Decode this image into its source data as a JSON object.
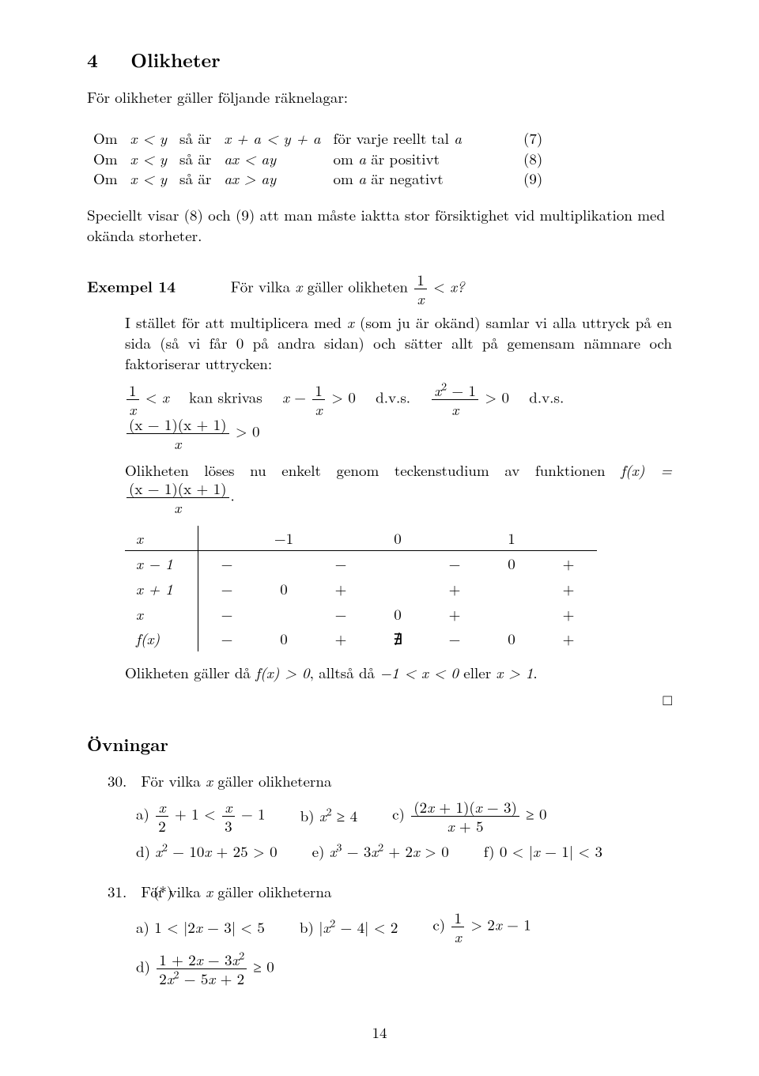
{
  "section": {
    "number": "4",
    "title": "Olikheter"
  },
  "intro": "För olikheter gäller följande räknelagar:",
  "rules": [
    {
      "cond_pre": "Om",
      "cond": "x < y",
      "sa": "så är",
      "res": "x + a < y + a",
      "tail": "för varje reellt tal a",
      "num": "(7)"
    },
    {
      "cond_pre": "Om",
      "cond": "x < y",
      "sa": "så är",
      "res": "ax < ay",
      "tail": "om a är positivt",
      "num": "(8)"
    },
    {
      "cond_pre": "Om",
      "cond": "x < y",
      "sa": "så är",
      "res": "ax > ay",
      "tail": "om a är negativt",
      "num": "(9)"
    }
  ],
  "after_rules": "Speciellt visar (8) och (9) att man måste iaktta stor försiktighet vid multiplikation med okända storheter.",
  "example": {
    "label": "Exempel 14",
    "head_text_a": "För vilka ",
    "head_text_b": " gäller olikheten ",
    "head_ineq_lhs_num": "1",
    "head_ineq_lhs_den": "x",
    "head_ineq_rel": "<",
    "head_ineq_rhs": "x?",
    "p1_a": "I stället för att multiplicera med ",
    "p1_b": " (som ju är okänd) samlar vi alla uttryck på en sida (så vi får 0 på andra sidan) och sätter allt på gemensam nämnare och faktoriserar uttrycken:",
    "line_parts": {
      "fr1_num": "1",
      "fr1_den": "x",
      "rel1": "<",
      "rhs1": "x",
      "t1": "kan skrivas",
      "lhs2_a": "x",
      "minus": "−",
      "fr2_num": "1",
      "fr2_den": "x",
      "gt": "> 0",
      "t2": "d.v.s.",
      "fr3_num": "x",
      "fr3_num_sup": "2",
      "fr3_num_tail": " − 1",
      "fr3_den": "x",
      "t3": "d.v.s.",
      "fr4_num": "(x − 1)(x + 1)",
      "fr4_den": "x"
    },
    "p2_a": "Olikheten löses nu enkelt genom teckenstudium av funktionen ",
    "p2_f": "f(x) = ",
    "p2_fr_num": "(x − 1)(x + 1)",
    "p2_fr_den": "x",
    "p2_dot": ".",
    "sign_table": {
      "header": [
        "x",
        "",
        "−1",
        "",
        "0",
        "",
        "1",
        ""
      ],
      "rows": [
        [
          "x − 1",
          "−",
          "",
          "−",
          "",
          "−",
          "0",
          "+"
        ],
        [
          "x + 1",
          "−",
          "0",
          "+",
          "",
          "+",
          "",
          "+"
        ],
        [
          "x",
          "−",
          "",
          "−",
          "0",
          "+",
          "",
          "+"
        ],
        [
          "f(x)",
          "−",
          "0",
          "+",
          "∄",
          "−",
          "0",
          "+"
        ]
      ]
    },
    "concl_a": "Olikheten gäller då  ",
    "concl_b": "f(x) > 0",
    "concl_c": ", alltså då ",
    "concl_d": "−1 < x < 0",
    "concl_e": " eller ",
    "concl_f": "x > 1",
    "concl_g": ".",
    "qed": "□"
  },
  "ovningar": {
    "title": "Övningar",
    "items": [
      {
        "num": "30.",
        "text": "För vilka x gäller olikheterna",
        "subs": [
          {
            "lbl": "a)",
            "expr_html": "<span class='fr'><span class='num it'>x</span><span class='den'>2</span></span> + 1 &lt; <span class='fr'><span class='num it'>x</span><span class='den'>3</span></span> − 1"
          },
          {
            "lbl": "b)",
            "expr_html": "<span class='it'>x</span><span class='sup'>2</span> ≥ 4"
          },
          {
            "lbl": "c)",
            "expr_html": "<span class='fr'><span class='num'>(2<span class='it'>x</span> + 1)(<span class='it'>x</span> − 3)</span><span class='den'><span class='it'>x</span> + 5</span></span> ≥ 0"
          },
          {
            "lbl": "d)",
            "expr_html": "<span class='it'>x</span><span class='sup'>2</span> − 10<span class='it'>x</span> + 25 &gt; 0"
          },
          {
            "lbl": "e)",
            "expr_html": "<span class='it'>x</span><span class='sup'>3</span> − 3<span class='it'>x</span><span class='sup'>2</span> + 2<span class='it'>x</span> &gt; 0"
          },
          {
            "lbl": "f)",
            "expr_html": "0 &lt; |<span class='it'>x</span> − 1| &lt; 3"
          }
        ]
      },
      {
        "num": "31.",
        "star": "(*)",
        "text": "För vilka x gäller olikheterna",
        "subs": [
          {
            "lbl": "a)",
            "expr_html": "1 &lt; |2<span class='it'>x</span> − 3| &lt; 5"
          },
          {
            "lbl": "b)",
            "expr_html": "|<span class='it'>x</span><span class='sup'>2</span> − 4| &lt; 2"
          },
          {
            "lbl": "c)",
            "expr_html": "<span class='fr'><span class='num'>1</span><span class='den it'>x</span></span> &gt; 2<span class='it'>x</span> − 1"
          },
          {
            "lbl": "d)",
            "expr_html": "<span class='fr'><span class='num'>1 + 2<span class='it'>x</span> − 3<span class='it'>x</span><span class='sup'>2</span></span><span class='den'>2<span class='it'>x</span><span class='sup'>2</span> − 5<span class='it'>x</span> + 2</span></span> ≥ 0"
          }
        ]
      }
    ]
  },
  "page_number": "14",
  "colors": {
    "text": "#000000",
    "bg": "#ffffff"
  },
  "typography": {
    "body_size_pt": 14,
    "heading_size_pt": 18,
    "family": "Computer Modern / Latin Modern serif"
  }
}
